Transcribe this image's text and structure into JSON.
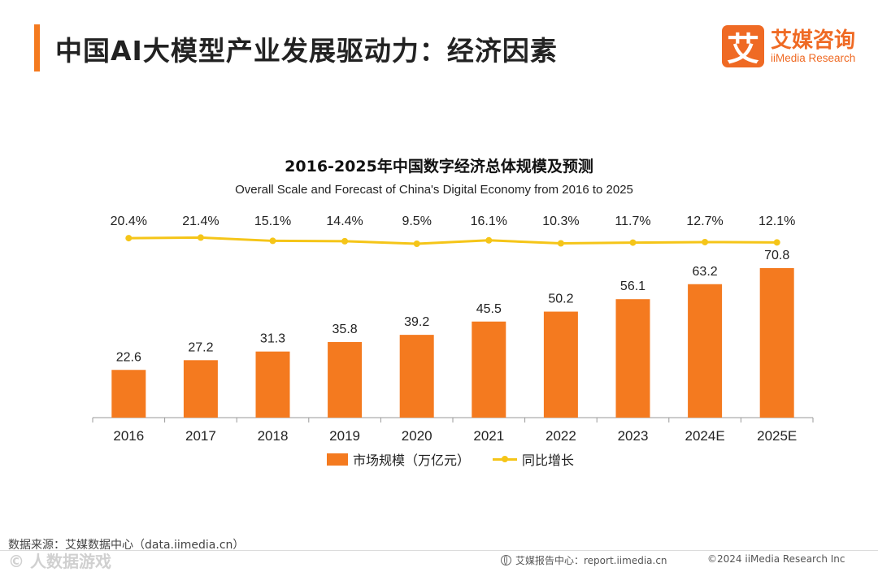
{
  "page": {
    "title": "中国AI大模型产业发展驱动力：经济因素"
  },
  "logo": {
    "mark": "艾",
    "name_cn": "艾媒咨询",
    "name_en": "iiMedia Research"
  },
  "chart_data": {
    "type": "bar",
    "title": "2016-2025年中国数字经济总体规模及预测",
    "subtitle": "Overall Scale and Forecast of China's Digital Economy from 2016 to 2025",
    "categories": [
      "2016",
      "2017",
      "2018",
      "2019",
      "2020",
      "2021",
      "2022",
      "2023",
      "2024E",
      "2025E"
    ],
    "series": [
      {
        "name": "市场规模（万亿元）",
        "type": "bar",
        "color": "#f47a1f",
        "values": [
          22.6,
          27.2,
          31.3,
          35.8,
          39.2,
          45.5,
          50.2,
          56.1,
          63.2,
          70.8
        ]
      },
      {
        "name": "同比增长",
        "type": "line",
        "color": "#f5c518",
        "values": [
          20.4,
          21.4,
          15.1,
          14.4,
          9.5,
          16.1,
          10.3,
          11.7,
          12.7,
          12.1
        ],
        "labels": [
          "20.4%",
          "21.4%",
          "15.1%",
          "14.4%",
          "9.5%",
          "16.1%",
          "10.3%",
          "11.7%",
          "12.7%",
          "12.1%"
        ]
      }
    ],
    "legend": "bottom",
    "grid": false
  },
  "footer": {
    "source": "数据来源：艾媒数据中心（data.iimedia.cn）",
    "watermark": "© 人数据游戏",
    "report_center": "艾媒报告中心：report.iimedia.cn",
    "copyright": "©2024  iiMedia Research  Inc"
  }
}
